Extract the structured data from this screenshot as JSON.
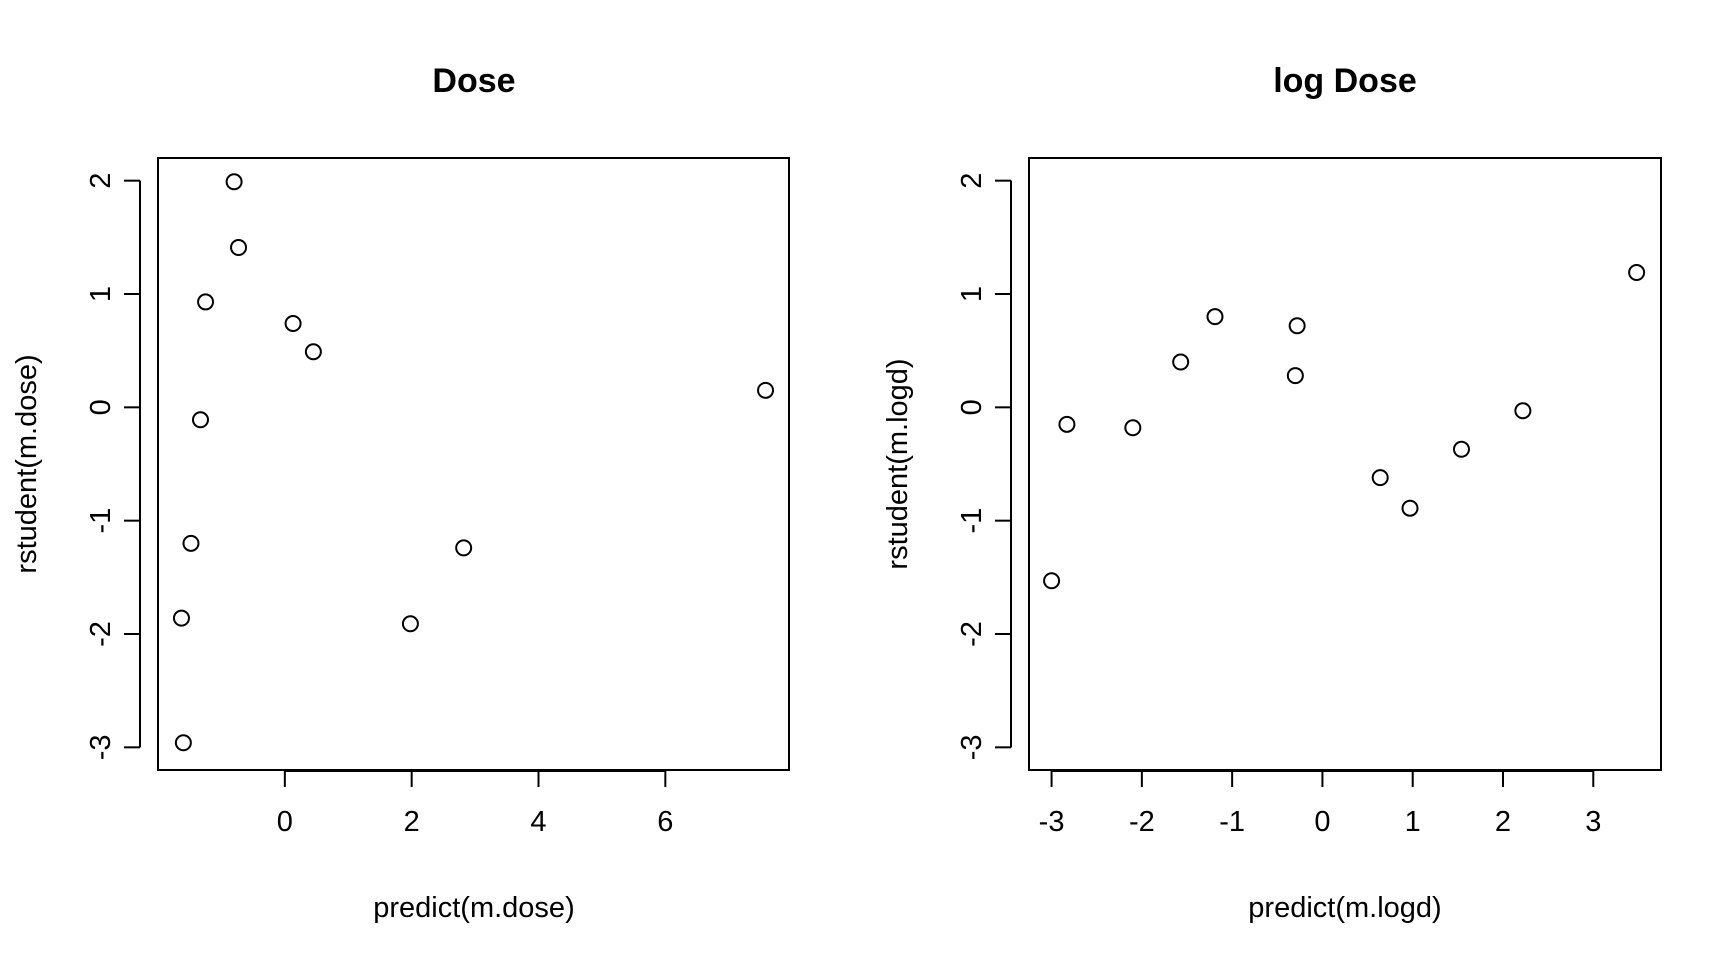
{
  "chart_data": [
    {
      "type": "scatter",
      "title": "Dose",
      "xlabel": "predict(m.dose)",
      "ylabel": "rstudent(m.dose)",
      "x_ticks": [
        "0",
        "2",
        "4",
        "6"
      ],
      "y_ticks": [
        "-3",
        "-2",
        "-1",
        "0",
        "1",
        "2"
      ],
      "xlim": [
        -2.0,
        7.95
      ],
      "ylim": [
        -3.2,
        2.2
      ],
      "grid": false,
      "points": [
        {
          "x": -0.8,
          "y": 1.99
        },
        {
          "x": -0.73,
          "y": 1.41
        },
        {
          "x": -1.25,
          "y": 0.93
        },
        {
          "x": 0.13,
          "y": 0.74
        },
        {
          "x": 0.45,
          "y": 0.49
        },
        {
          "x": 7.58,
          "y": 0.15
        },
        {
          "x": -1.33,
          "y": -0.11
        },
        {
          "x": -1.48,
          "y": -1.2
        },
        {
          "x": 2.82,
          "y": -1.24
        },
        {
          "x": -1.63,
          "y": -1.86
        },
        {
          "x": 1.98,
          "y": -1.91
        },
        {
          "x": -1.6,
          "y": -2.96
        }
      ]
    },
    {
      "type": "scatter",
      "title": "log Dose",
      "xlabel": "predict(m.logd)",
      "ylabel": "rstudent(m.logd)",
      "x_ticks": [
        "-3",
        "-2",
        "-1",
        "0",
        "1",
        "2",
        "3"
      ],
      "y_ticks": [
        "-3",
        "-2",
        "-1",
        "0",
        "1",
        "2"
      ],
      "xlim": [
        -3.25,
        3.75
      ],
      "ylim": [
        -3.2,
        2.2
      ],
      "grid": false,
      "points": [
        {
          "x": 3.48,
          "y": 1.19
        },
        {
          "x": -1.19,
          "y": 0.8
        },
        {
          "x": -0.28,
          "y": 0.72
        },
        {
          "x": -1.57,
          "y": 0.4
        },
        {
          "x": -0.3,
          "y": 0.28
        },
        {
          "x": -2.83,
          "y": -0.15
        },
        {
          "x": -2.1,
          "y": -0.18
        },
        {
          "x": 2.22,
          "y": -0.03
        },
        {
          "x": 1.54,
          "y": -0.37
        },
        {
          "x": 0.64,
          "y": -0.62
        },
        {
          "x": 0.97,
          "y": -0.89
        },
        {
          "x": -3.0,
          "y": -1.53
        }
      ]
    }
  ]
}
